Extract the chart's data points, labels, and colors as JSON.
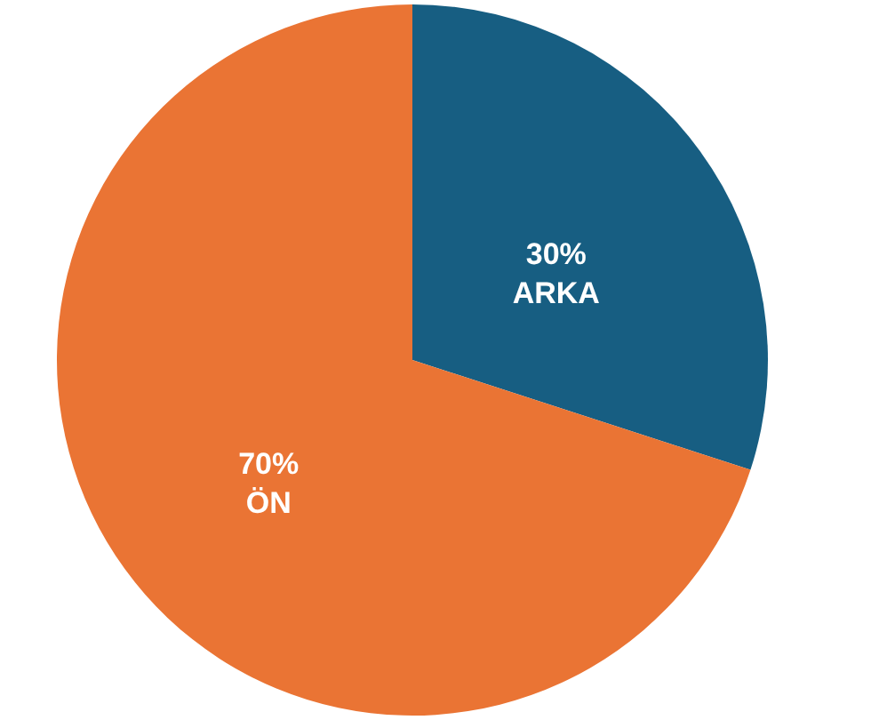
{
  "chart_data": {
    "type": "pie",
    "categories": [
      "ARKA",
      "ÖN"
    ],
    "values": [
      30,
      70
    ],
    "colors": [
      "#175e82",
      "#ea7434"
    ],
    "value_labels": [
      "30%",
      "70%"
    ]
  }
}
